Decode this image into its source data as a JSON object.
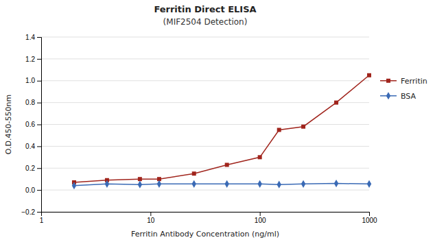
{
  "chart_data": {
    "type": "line",
    "title": "Ferritin Direct ELISA",
    "subtitle": "(MIF2504 Detection)",
    "xlabel": "Ferritin Antibody Concentration (ng/ml)",
    "ylabel": "O.D.450-550nm",
    "x": [
      2,
      4,
      8,
      12,
      25,
      50,
      100,
      150,
      250,
      500,
      1000
    ],
    "series": [
      {
        "name": "Ferritin",
        "color": "#A0241C",
        "marker": "square",
        "values": [
          0.07,
          0.09,
          0.1,
          0.1,
          0.15,
          0.23,
          0.3,
          0.55,
          0.58,
          0.8,
          1.05
        ]
      },
      {
        "name": "BSA",
        "color": "#3A6AB5",
        "marker": "diamond",
        "values": [
          0.04,
          0.055,
          0.05,
          0.055,
          0.055,
          0.055,
          0.055,
          0.05,
          0.055,
          0.06,
          0.055
        ]
      }
    ],
    "log": "x",
    "xlim": [
      1,
      1000
    ],
    "xticks": [
      1,
      10,
      100,
      1000
    ],
    "ylim": [
      -0.2,
      1.4
    ],
    "yticks": [
      {
        "value": -0.2,
        "label": "−0.2"
      },
      {
        "value": 0.0,
        "label": "0.0"
      },
      0.2,
      0.4,
      0.6,
      0.8,
      {
        "value": 1.0,
        "label": "1.0"
      },
      1.2,
      1.4
    ],
    "grid": true,
    "legend": "right"
  }
}
